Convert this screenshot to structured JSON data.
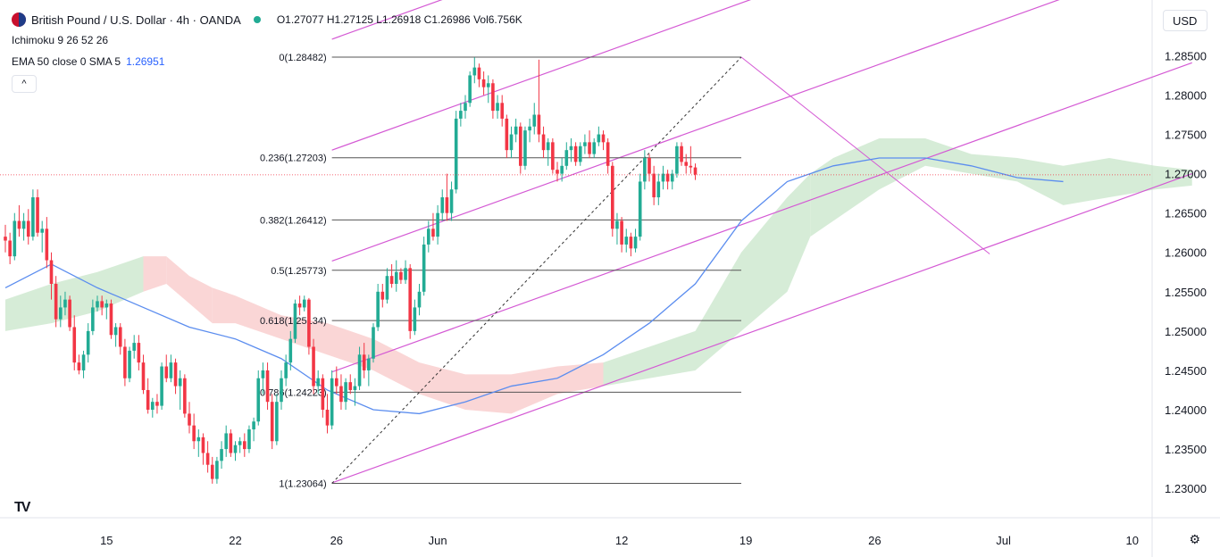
{
  "header": {
    "symbol": "British Pound / U.S. Dollar · 4h · OANDA",
    "open": "O1.27077",
    "high": "H1.27125",
    "low": "L1.26918",
    "close": "C1.26986",
    "volume": "Vol6.756K"
  },
  "indicators": {
    "ichimoku": "Ichimoku 9 26 52 26",
    "ema": "EMA 50 close 0 SMA 5",
    "ema_value": "1.26951"
  },
  "controls": {
    "collapse": "^",
    "currency": "USD",
    "settings_icon": "gear-icon",
    "logo": "TV"
  },
  "colors": {
    "up": "#22ab94",
    "down": "#f23645",
    "ema": "#5b8def",
    "channel": "#d459d4",
    "fib": "#555555",
    "cloud_up": "#c8e6c9",
    "cloud_down": "#f8c8c8",
    "price_line": "#f23645"
  },
  "chart_data": {
    "type": "candlestick",
    "title": "British Pound / U.S. Dollar · 4h · OANDA",
    "ylim": [
      1.2275,
      1.2905
    ],
    "y_ticks": [
      1.285,
      1.28,
      1.275,
      1.27,
      1.265,
      1.26,
      1.255,
      1.25,
      1.245,
      1.24,
      1.235,
      1.23
    ],
    "y_tick_labels": [
      "1.28500",
      "1.28000",
      "1.27500",
      "1.27000",
      "1.26500",
      "1.26000",
      "1.25500",
      "1.25000",
      "1.24500",
      "1.24000",
      "1.23500",
      "1.23000"
    ],
    "x_ticks": [
      {
        "bar": 22,
        "label": "15"
      },
      {
        "bar": 50,
        "label": "22"
      },
      {
        "bar": 72,
        "label": "26"
      },
      {
        "bar": 94,
        "label": "Jun"
      },
      {
        "bar": 134,
        "label": "12"
      },
      {
        "bar": 161,
        "label": "19"
      },
      {
        "bar": 189,
        "label": "26"
      },
      {
        "bar": 217,
        "label": "Jul"
      },
      {
        "bar": 245,
        "label": "10"
      }
    ],
    "last_price": 1.26986,
    "fibonacci": {
      "start_bar": 71,
      "end_bar": 160,
      "levels": [
        {
          "ratio": "0",
          "price": 1.28482,
          "label": "0(1.28482)"
        },
        {
          "ratio": "0.236",
          "price": 1.27203,
          "label": "0.236(1.27203)"
        },
        {
          "ratio": "0.382",
          "price": 1.26412,
          "label": "0.382(1.26412)"
        },
        {
          "ratio": "0.5",
          "price": 1.25773,
          "label": "0.5(1.25773)"
        },
        {
          "ratio": "0.618",
          "price": 1.25134,
          "label": "0.618(1.25134)"
        },
        {
          "ratio": "0.786",
          "price": 1.24223,
          "label": "0.786(1.24223)"
        },
        {
          "ratio": "1",
          "price": 1.23064,
          "label": "1(1.23064)"
        }
      ]
    },
    "trend_lines": [
      {
        "name": "fib-diagonal",
        "from": [
          71,
          1.23064
        ],
        "to": [
          160,
          1.28482
        ],
        "dashed": true
      },
      {
        "name": "pullback-line",
        "from": [
          160,
          1.28482
        ],
        "to": [
          214,
          1.2598
        ],
        "dashed": false
      }
    ],
    "channel": {
      "base": {
        "from": [
          71,
          1.2307
        ],
        "to": [
          258,
          1.27
        ]
      },
      "offsets": [
        0,
        0.0141,
        0.0282,
        0.0423,
        0.0564
      ]
    },
    "ema": [
      [
        0,
        1.2555
      ],
      [
        10,
        1.2585
      ],
      [
        20,
        1.2555
      ],
      [
        30,
        1.253
      ],
      [
        40,
        1.2505
      ],
      [
        50,
        1.249
      ],
      [
        60,
        1.2465
      ],
      [
        70,
        1.2425
      ],
      [
        80,
        1.24
      ],
      [
        90,
        1.2395
      ],
      [
        100,
        1.241
      ],
      [
        110,
        1.243
      ],
      [
        120,
        1.244
      ],
      [
        130,
        1.247
      ],
      [
        140,
        1.251
      ],
      [
        150,
        1.256
      ],
      [
        160,
        1.264
      ],
      [
        170,
        1.269
      ],
      [
        180,
        1.271
      ],
      [
        190,
        1.272
      ],
      [
        200,
        1.272
      ],
      [
        210,
        1.271
      ],
      [
        220,
        1.2695
      ],
      [
        230,
        1.269
      ]
    ],
    "cloud": [
      [
        0,
        1.25,
        1.254
      ],
      [
        10,
        1.251,
        1.256
      ],
      [
        20,
        1.2525,
        1.2575
      ],
      [
        30,
        1.255,
        1.2595
      ],
      [
        35,
        1.256,
        1.2595
      ],
      [
        40,
        1.2535,
        1.257
      ],
      [
        45,
        1.251,
        1.2555
      ],
      [
        50,
        1.251,
        1.2545
      ],
      [
        60,
        1.249,
        1.252
      ],
      [
        70,
        1.247,
        1.251
      ],
      [
        80,
        1.245,
        1.249
      ],
      [
        90,
        1.242,
        1.246
      ],
      [
        100,
        1.24,
        1.2445
      ],
      [
        110,
        1.2395,
        1.2445
      ],
      [
        120,
        1.242,
        1.2455
      ],
      [
        130,
        1.243,
        1.246
      ],
      [
        140,
        1.244,
        1.248
      ],
      [
        150,
        1.245,
        1.25
      ],
      [
        160,
        1.25,
        1.26
      ],
      [
        170,
        1.255,
        1.267
      ],
      [
        175,
        1.262,
        1.27
      ],
      [
        180,
        1.264,
        1.272
      ],
      [
        190,
        1.268,
        1.2745
      ],
      [
        200,
        1.271,
        1.2745
      ],
      [
        210,
        1.27,
        1.2725
      ],
      [
        220,
        1.269,
        1.272
      ],
      [
        230,
        1.266,
        1.271
      ],
      [
        240,
        1.267,
        1.272
      ],
      [
        250,
        1.268,
        1.271
      ],
      [
        258,
        1.2685,
        1.2705
      ]
    ],
    "series": [
      [
        1.262,
        1.2635,
        1.26,
        1.2615
      ],
      [
        1.2615,
        1.2625,
        1.2585,
        1.2595
      ],
      [
        1.2595,
        1.265,
        1.259,
        1.264
      ],
      [
        1.264,
        1.266,
        1.262,
        1.263
      ],
      [
        1.263,
        1.265,
        1.2615,
        1.264
      ],
      [
        1.264,
        1.2655,
        1.261,
        1.262
      ],
      [
        1.262,
        1.268,
        1.2615,
        1.267
      ],
      [
        1.267,
        1.268,
        1.262,
        1.2625
      ],
      [
        1.2625,
        1.264,
        1.26,
        1.263
      ],
      [
        1.263,
        1.2645,
        1.258,
        1.259
      ],
      [
        1.259,
        1.26,
        1.254,
        1.256
      ],
      [
        1.256,
        1.257,
        1.2505,
        1.2515
      ],
      [
        1.2515,
        1.2545,
        1.2505,
        1.253
      ],
      [
        1.253,
        1.255,
        1.252,
        1.254
      ],
      [
        1.254,
        1.2545,
        1.25,
        1.2505
      ],
      [
        1.2505,
        1.252,
        1.245,
        1.246
      ],
      [
        1.246,
        1.247,
        1.2445,
        1.245
      ],
      [
        1.245,
        1.2475,
        1.244,
        1.247
      ],
      [
        1.247,
        1.251,
        1.246,
        1.25
      ],
      [
        1.25,
        1.254,
        1.2495,
        1.253
      ],
      [
        1.253,
        1.2545,
        1.2525,
        1.2538
      ],
      [
        1.2538,
        1.2545,
        1.252,
        1.253
      ],
      [
        1.253,
        1.254,
        1.2515,
        1.2535
      ],
      [
        1.2535,
        1.254,
        1.249,
        1.2495
      ],
      [
        1.2495,
        1.251,
        1.248,
        1.2505
      ],
      [
        1.2505,
        1.251,
        1.247,
        1.248
      ],
      [
        1.248,
        1.249,
        1.243,
        1.244
      ],
      [
        1.244,
        1.248,
        1.2435,
        1.2475
      ],
      [
        1.2475,
        1.2495,
        1.2465,
        1.2485
      ],
      [
        1.2485,
        1.2495,
        1.245,
        1.246
      ],
      [
        1.246,
        1.247,
        1.242,
        1.2425
      ],
      [
        1.2425,
        1.244,
        1.2395,
        1.24
      ],
      [
        1.24,
        1.2415,
        1.239,
        1.241
      ],
      [
        1.241,
        1.242,
        1.2395,
        1.2405
      ],
      [
        1.2405,
        1.246,
        1.24,
        1.2455
      ],
      [
        1.2455,
        1.247,
        1.2435,
        1.244
      ],
      [
        1.244,
        1.247,
        1.2435,
        1.246
      ],
      [
        1.246,
        1.2465,
        1.242,
        1.243
      ],
      [
        1.243,
        1.245,
        1.24,
        1.244
      ],
      [
        1.244,
        1.2445,
        1.239,
        1.2395
      ],
      [
        1.2395,
        1.241,
        1.237,
        1.238
      ],
      [
        1.238,
        1.2395,
        1.235,
        1.236
      ],
      [
        1.236,
        1.2375,
        1.234,
        1.2365
      ],
      [
        1.2365,
        1.237,
        1.233,
        1.2345
      ],
      [
        1.2345,
        1.236,
        1.232,
        1.233
      ],
      [
        1.233,
        1.234,
        1.2306,
        1.2312
      ],
      [
        1.2312,
        1.234,
        1.2306,
        1.2335
      ],
      [
        1.2335,
        1.236,
        1.2325,
        1.235
      ],
      [
        1.235,
        1.238,
        1.234,
        1.237
      ],
      [
        1.237,
        1.2375,
        1.234,
        1.2345
      ],
      [
        1.2345,
        1.236,
        1.2335,
        1.2355
      ],
      [
        1.2355,
        1.2365,
        1.2345,
        1.236
      ],
      [
        1.236,
        1.237,
        1.234,
        1.235
      ],
      [
        1.235,
        1.238,
        1.2345,
        1.2375
      ],
      [
        1.2375,
        1.239,
        1.236,
        1.2385
      ],
      [
        1.2385,
        1.245,
        1.238,
        1.244
      ],
      [
        1.244,
        1.246,
        1.242,
        1.245
      ],
      [
        1.245,
        1.246,
        1.24,
        1.241
      ],
      [
        1.241,
        1.242,
        1.235,
        1.236
      ],
      [
        1.236,
        1.242,
        1.2355,
        1.241
      ],
      [
        1.241,
        1.245,
        1.24,
        1.244
      ],
      [
        1.244,
        1.247,
        1.243,
        1.246
      ],
      [
        1.246,
        1.25,
        1.245,
        1.249
      ],
      [
        1.249,
        1.254,
        1.2485,
        1.2535
      ],
      [
        1.2535,
        1.2545,
        1.252,
        1.253
      ],
      [
        1.253,
        1.2545,
        1.2525,
        1.254
      ],
      [
        1.254,
        1.2542,
        1.247,
        1.248
      ],
      [
        1.248,
        1.249,
        1.242,
        1.243
      ],
      [
        1.243,
        1.245,
        1.242,
        1.244
      ],
      [
        1.244,
        1.2445,
        1.239,
        1.24
      ],
      [
        1.24,
        1.242,
        1.237,
        1.238
      ],
      [
        1.238,
        1.245,
        1.2375,
        1.244
      ],
      [
        1.244,
        1.2455,
        1.242,
        1.243
      ],
      [
        1.243,
        1.2445,
        1.24,
        1.241
      ],
      [
        1.241,
        1.244,
        1.24,
        1.2435
      ],
      [
        1.2435,
        1.2445,
        1.242,
        1.2425
      ],
      [
        1.2425,
        1.244,
        1.2405,
        1.243
      ],
      [
        1.243,
        1.248,
        1.2425,
        1.247
      ],
      [
        1.247,
        1.2485,
        1.244,
        1.245
      ],
      [
        1.245,
        1.247,
        1.243,
        1.2465
      ],
      [
        1.2465,
        1.251,
        1.246,
        1.2505
      ],
      [
        1.2505,
        1.256,
        1.25,
        1.255
      ],
      [
        1.255,
        1.256,
        1.253,
        1.254
      ],
      [
        1.254,
        1.258,
        1.2535,
        1.257
      ],
      [
        1.257,
        1.2585,
        1.2555,
        1.256
      ],
      [
        1.256,
        1.259,
        1.255,
        1.2575
      ],
      [
        1.2575,
        1.258,
        1.256,
        1.2565
      ],
      [
        1.2565,
        1.259,
        1.256,
        1.258
      ],
      [
        1.258,
        1.2585,
        1.249,
        1.25
      ],
      [
        1.25,
        1.254,
        1.2495,
        1.253
      ],
      [
        1.253,
        1.256,
        1.252,
        1.255
      ],
      [
        1.255,
        1.262,
        1.2545,
        1.261
      ],
      [
        1.261,
        1.264,
        1.26,
        1.263
      ],
      [
        1.263,
        1.265,
        1.2615,
        1.262
      ],
      [
        1.262,
        1.266,
        1.261,
        1.265
      ],
      [
        1.265,
        1.268,
        1.264,
        1.267
      ],
      [
        1.267,
        1.27,
        1.264,
        1.265
      ],
      [
        1.265,
        1.269,
        1.264,
        1.268
      ],
      [
        1.268,
        1.278,
        1.2675,
        1.277
      ],
      [
        1.277,
        1.279,
        1.276,
        1.278
      ],
      [
        1.278,
        1.28,
        1.277,
        1.279
      ],
      [
        1.279,
        1.283,
        1.2785,
        1.2825
      ],
      [
        1.2825,
        1.2848,
        1.2815,
        1.2835
      ],
      [
        1.2835,
        1.284,
        1.281,
        1.282
      ],
      [
        1.282,
        1.283,
        1.28,
        1.281
      ],
      [
        1.281,
        1.2825,
        1.279,
        1.2815
      ],
      [
        1.2815,
        1.282,
        1.277,
        1.278
      ],
      [
        1.278,
        1.28,
        1.277,
        1.279
      ],
      [
        1.279,
        1.28,
        1.276,
        1.277
      ],
      [
        1.277,
        1.2775,
        1.272,
        1.273
      ],
      [
        1.273,
        1.276,
        1.272,
        1.275
      ],
      [
        1.275,
        1.277,
        1.274,
        1.276
      ],
      [
        1.276,
        1.2765,
        1.27,
        1.271
      ],
      [
        1.271,
        1.276,
        1.2705,
        1.2755
      ],
      [
        1.2755,
        1.277,
        1.274,
        1.276
      ],
      [
        1.276,
        1.279,
        1.275,
        1.2775
      ],
      [
        1.2775,
        1.2845,
        1.274,
        1.275
      ],
      [
        1.275,
        1.276,
        1.272,
        1.273
      ],
      [
        1.273,
        1.2745,
        1.271,
        1.274
      ],
      [
        1.274,
        1.2745,
        1.27,
        1.2705
      ],
      [
        1.2705,
        1.2715,
        1.269,
        1.27
      ],
      [
        1.27,
        1.272,
        1.269,
        1.271
      ],
      [
        1.271,
        1.274,
        1.2705,
        1.273
      ],
      [
        1.273,
        1.2745,
        1.2715,
        1.2735
      ],
      [
        1.2735,
        1.274,
        1.271,
        1.2715
      ],
      [
        1.2715,
        1.274,
        1.271,
        1.2735
      ],
      [
        1.2735,
        1.275,
        1.2725,
        1.274
      ],
      [
        1.274,
        1.2755,
        1.272,
        1.2725
      ],
      [
        1.2725,
        1.2745,
        1.272,
        1.274
      ],
      [
        1.274,
        1.276,
        1.2735,
        1.275
      ],
      [
        1.275,
        1.2755,
        1.273,
        1.274
      ],
      [
        1.274,
        1.2745,
        1.27,
        1.271
      ],
      [
        1.271,
        1.2715,
        1.262,
        1.263
      ],
      [
        1.263,
        1.265,
        1.261,
        1.264
      ],
      [
        1.264,
        1.2645,
        1.26,
        1.261
      ],
      [
        1.261,
        1.263,
        1.26,
        1.262
      ],
      [
        1.262,
        1.2625,
        1.2595,
        1.2605
      ],
      [
        1.2605,
        1.263,
        1.26,
        1.262
      ],
      [
        1.262,
        1.27,
        1.2615,
        1.269
      ],
      [
        1.269,
        1.273,
        1.268,
        1.272
      ],
      [
        1.272,
        1.2725,
        1.269,
        1.27
      ],
      [
        1.27,
        1.271,
        1.266,
        1.267
      ],
      [
        1.267,
        1.27,
        1.266,
        1.269
      ],
      [
        1.269,
        1.271,
        1.268,
        1.27
      ],
      [
        1.27,
        1.2705,
        1.268,
        1.269
      ],
      [
        1.269,
        1.2705,
        1.268,
        1.27
      ],
      [
        1.27,
        1.274,
        1.2695,
        1.2735
      ],
      [
        1.2735,
        1.274,
        1.271,
        1.2715
      ],
      [
        1.2715,
        1.2725,
        1.27,
        1.271
      ],
      [
        1.271,
        1.2735,
        1.27,
        1.2708
      ],
      [
        1.2708,
        1.2713,
        1.2692,
        1.2699
      ]
    ]
  }
}
